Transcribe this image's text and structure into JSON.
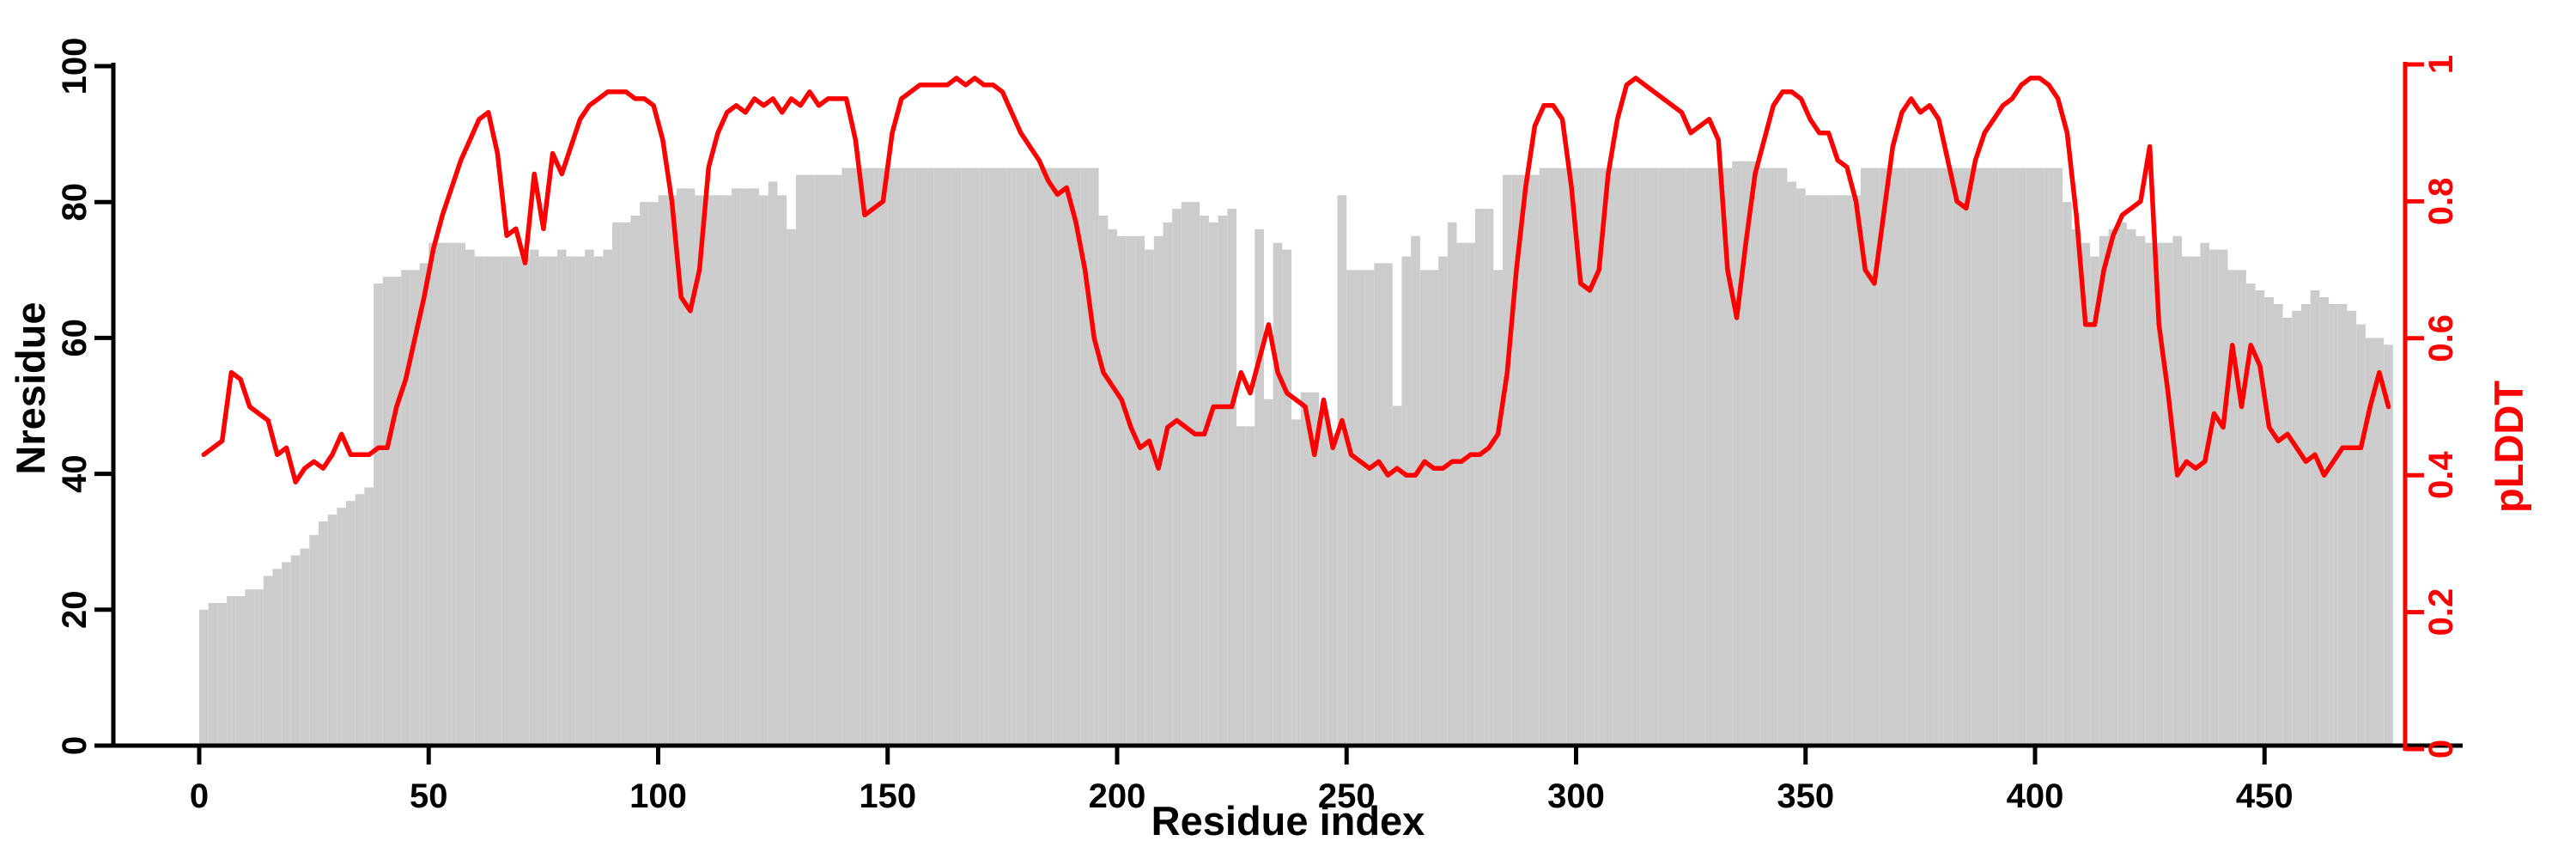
{
  "chart_data": {
    "type": "composite",
    "title": "",
    "description": "Per-residue profile: gray bars = Nresidue (left axis), red line = pLDDT (right axis)",
    "x_label": "Residue index",
    "x_start": 0,
    "x_step": 2,
    "n_points": 239,
    "x_axis": {
      "label": "Residue index",
      "tick_values": [
        0,
        50,
        100,
        150,
        200,
        250,
        300,
        350,
        400,
        450
      ],
      "tick_labels": [
        "0",
        "50",
        "100",
        "150",
        "200",
        "250",
        "300",
        "350",
        "400",
        "450"
      ],
      "range": [
        -19,
        493
      ]
    },
    "y_axis_left": {
      "label": "Nresidue",
      "color": "#000000",
      "tick_values": [
        0,
        20,
        40,
        60,
        80,
        100
      ],
      "tick_labels": [
        "0",
        "20",
        "40",
        "60",
        "80",
        "100"
      ],
      "range": [
        0,
        100
      ]
    },
    "y_axis_right": {
      "label": "pLDDT",
      "color": "#ff0000",
      "tick_values": [
        0,
        0.2,
        0.4,
        0.6,
        0.8,
        1
      ],
      "tick_labels": [
        "0",
        "0.2",
        "0.4",
        "0.6",
        "0.8",
        "1"
      ],
      "range": [
        0,
        1
      ]
    },
    "grid": false,
    "legend": "none",
    "background": "#ffffff",
    "series": [
      {
        "name": "Nresidue",
        "type": "bar",
        "axis": "left",
        "color": "#cccccc",
        "values": [
          20,
          21,
          21,
          22,
          22,
          23,
          23,
          25,
          26,
          27,
          28,
          29,
          31,
          33,
          34,
          35,
          36,
          37,
          38,
          68,
          69,
          69,
          70,
          70,
          71,
          74,
          74,
          74,
          74,
          73,
          72,
          72,
          72,
          72,
          72,
          72,
          73,
          72,
          72,
          73,
          72,
          72,
          73,
          72,
          73,
          77,
          77,
          78,
          80,
          80,
          81,
          81,
          82,
          82,
          81,
          81,
          81,
          81,
          82,
          82,
          82,
          81,
          83,
          81,
          76,
          84,
          84,
          84,
          84,
          84,
          85,
          85,
          85,
          85,
          85,
          85,
          85,
          85,
          85,
          85,
          85,
          85,
          85,
          85,
          85,
          85,
          85,
          85,
          85,
          85,
          85,
          85,
          85,
          85,
          85,
          85,
          85,
          85,
          78,
          76,
          75,
          75,
          75,
          73,
          75,
          77,
          79,
          80,
          80,
          78,
          77,
          78,
          79,
          47,
          47,
          76,
          51,
          74,
          73,
          48,
          52,
          52,
          49,
          46,
          81,
          70,
          70,
          70,
          71,
          71,
          50,
          72,
          75,
          70,
          70,
          72,
          77,
          74,
          74,
          79,
          79,
          70,
          84,
          84,
          84,
          84,
          85,
          85,
          85,
          85,
          85,
          85,
          85,
          85,
          85,
          85,
          85,
          85,
          85,
          85,
          85,
          85,
          85,
          85,
          85,
          85,
          85,
          86,
          86,
          86,
          85,
          85,
          85,
          83,
          82,
          81,
          81,
          81,
          81,
          81,
          81,
          85,
          85,
          85,
          85,
          85,
          85,
          85,
          85,
          85,
          85,
          85,
          85,
          85,
          85,
          85,
          85,
          85,
          85,
          85,
          85,
          85,
          85,
          80,
          76,
          74,
          72,
          75,
          76,
          77,
          76,
          75,
          74,
          74,
          74,
          75,
          72,
          72,
          74,
          73,
          73,
          70,
          70,
          68,
          67,
          66,
          65,
          63,
          64,
          65,
          67,
          66,
          65,
          65,
          64,
          62,
          60,
          60,
          59
        ]
      },
      {
        "name": "pLDDT",
        "type": "line",
        "axis": "right",
        "color": "#ff0000",
        "values": [
          0.43,
          0.44,
          0.45,
          0.55,
          0.54,
          0.5,
          0.49,
          0.48,
          0.43,
          0.44,
          0.39,
          0.41,
          0.42,
          0.41,
          0.43,
          0.46,
          0.43,
          0.43,
          0.43,
          0.44,
          0.44,
          0.5,
          0.54,
          0.6,
          0.66,
          0.73,
          0.78,
          0.82,
          0.86,
          0.89,
          0.92,
          0.93,
          0.87,
          0.75,
          0.76,
          0.71,
          0.84,
          0.76,
          0.87,
          0.84,
          0.88,
          0.92,
          0.94,
          0.95,
          0.96,
          0.96,
          0.96,
          0.95,
          0.95,
          0.94,
          0.89,
          0.8,
          0.66,
          0.64,
          0.7,
          0.85,
          0.9,
          0.93,
          0.94,
          0.93,
          0.95,
          0.94,
          0.95,
          0.93,
          0.95,
          0.94,
          0.96,
          0.94,
          0.95,
          0.95,
          0.95,
          0.89,
          0.78,
          0.79,
          0.8,
          0.9,
          0.95,
          0.96,
          0.97,
          0.97,
          0.97,
          0.97,
          0.98,
          0.97,
          0.98,
          0.97,
          0.97,
          0.96,
          0.93,
          0.9,
          0.88,
          0.86,
          0.83,
          0.81,
          0.82,
          0.77,
          0.7,
          0.6,
          0.55,
          0.53,
          0.51,
          0.47,
          0.44,
          0.45,
          0.41,
          0.47,
          0.48,
          0.47,
          0.46,
          0.46,
          0.5,
          0.5,
          0.5,
          0.55,
          0.52,
          0.57,
          0.62,
          0.55,
          0.52,
          0.51,
          0.5,
          0.43,
          0.51,
          0.44,
          0.48,
          0.43,
          0.42,
          0.41,
          0.42,
          0.4,
          0.41,
          0.4,
          0.4,
          0.42,
          0.41,
          0.41,
          0.42,
          0.42,
          0.43,
          0.43,
          0.44,
          0.46,
          0.55,
          0.7,
          0.82,
          0.91,
          0.94,
          0.94,
          0.92,
          0.82,
          0.68,
          0.67,
          0.7,
          0.84,
          0.92,
          0.97,
          0.98,
          0.97,
          0.96,
          0.95,
          0.94,
          0.93,
          0.9,
          0.91,
          0.92,
          0.89,
          0.7,
          0.63,
          0.74,
          0.84,
          0.89,
          0.94,
          0.96,
          0.96,
          0.95,
          0.92,
          0.9,
          0.9,
          0.86,
          0.85,
          0.8,
          0.7,
          0.68,
          0.78,
          0.88,
          0.93,
          0.95,
          0.93,
          0.94,
          0.92,
          0.86,
          0.8,
          0.79,
          0.86,
          0.9,
          0.92,
          0.94,
          0.95,
          0.97,
          0.98,
          0.98,
          0.97,
          0.95,
          0.9,
          0.78,
          0.62,
          0.62,
          0.7,
          0.75,
          0.78,
          0.79,
          0.8,
          0.88,
          0.62,
          0.52,
          0.4,
          0.42,
          0.41,
          0.42,
          0.49,
          0.47,
          0.59,
          0.5,
          0.59,
          0.56,
          0.47,
          0.45,
          0.46,
          0.44,
          0.42,
          0.43,
          0.4,
          0.42,
          0.44,
          0.44,
          0.44,
          0.5,
          0.55,
          0.5
        ]
      }
    ]
  }
}
